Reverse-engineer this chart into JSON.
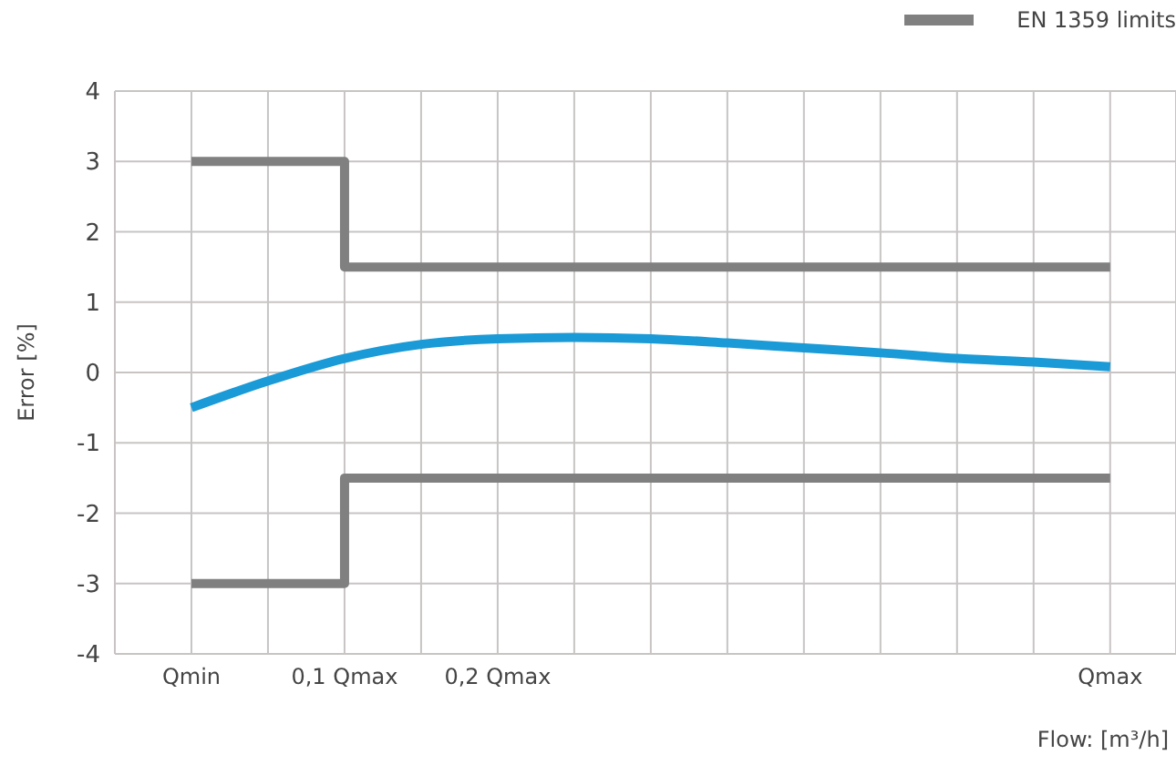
{
  "chart_data": {
    "type": "line",
    "xlabel": "Flow: [m³/h]",
    "ylabel": "Error [%]",
    "categories": [
      "Qmin",
      null,
      "0,1 Qmax",
      null,
      "0,2 Qmax",
      null,
      null,
      null,
      null,
      null,
      null,
      null,
      "Qmax"
    ],
    "ylim": [
      -4,
      4
    ],
    "yticks": [
      -4,
      -3,
      -2,
      -1,
      0,
      1,
      2,
      3,
      4
    ],
    "grid": true,
    "legend": "top right",
    "marker": "none",
    "series": [
      {
        "name": "EN 1359 limits",
        "type": "step",
        "color": "#808080",
        "values": [
          3,
          3,
          1.5,
          1.5,
          1.5,
          1.5,
          1.5,
          1.5,
          1.5,
          1.5,
          1.5,
          1.5,
          1.5
        ]
      },
      {
        "type": "step",
        "color": "#808080",
        "values": [
          -3,
          -3,
          -1.5,
          -1.5,
          -1.5,
          -1.5,
          -1.5,
          -1.5,
          -1.5,
          -1.5,
          -1.5,
          -1.5,
          -1.5
        ]
      },
      {
        "color": "#1a9ad6",
        "values": [
          -0.5,
          -0.12,
          0.2,
          0.4,
          0.48,
          0.5,
          0.48,
          0.42,
          0.35,
          0.28,
          0.2,
          0.15,
          0.08
        ]
      }
    ]
  }
}
